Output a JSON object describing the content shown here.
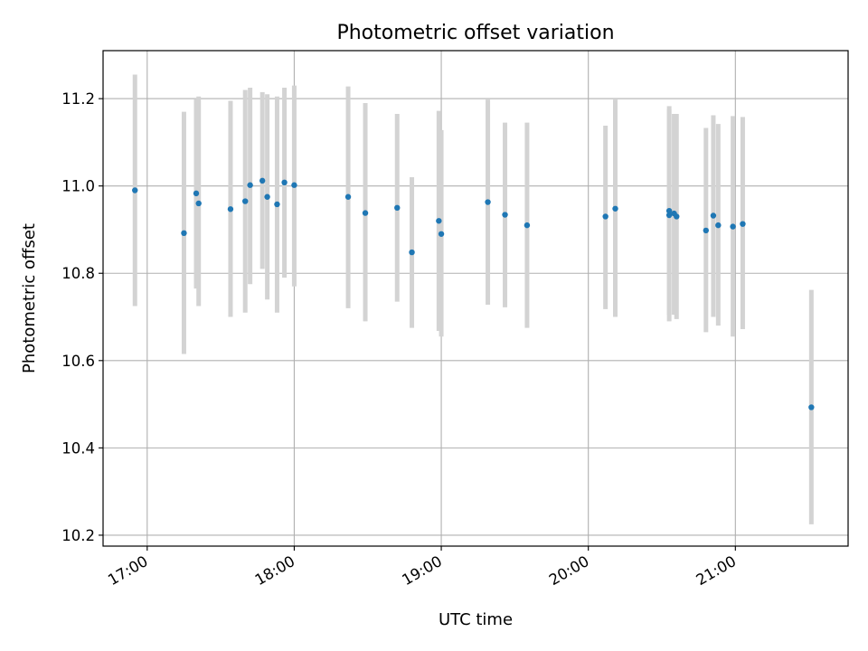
{
  "chart_data": {
    "type": "scatter",
    "title": "Photometric offset variation",
    "xlabel": "UTC time",
    "ylabel": "Photometric offset",
    "x_ticks": [
      "17:00",
      "18:00",
      "19:00",
      "20:00",
      "21:00"
    ],
    "y_ticks": [
      "10.2",
      "10.4",
      "10.6",
      "10.8",
      "11.0",
      "11.2"
    ],
    "x_tick_values": [
      "17:00",
      "18:00",
      "19:00",
      "20:00",
      "21:00"
    ],
    "y_tick_values": [
      10.2,
      10.4,
      10.6,
      10.8,
      11.0,
      11.2
    ],
    "xlim": [
      "16:42",
      "21:46"
    ],
    "ylim": [
      10.175,
      11.31
    ],
    "grid": true,
    "colors": {
      "point": "#1f77b4",
      "errorbar": "#d3d3d3",
      "grid": "#b0b0b0"
    },
    "points": [
      {
        "x": "16:55",
        "y": 10.99,
        "ylo": 10.725,
        "yhi": 11.255
      },
      {
        "x": "17:15",
        "y": 10.892,
        "ylo": 10.615,
        "yhi": 11.17
      },
      {
        "x": "17:20",
        "y": 10.983,
        "ylo": 10.765,
        "yhi": 11.2
      },
      {
        "x": "17:21",
        "y": 10.96,
        "ylo": 10.725,
        "yhi": 11.205
      },
      {
        "x": "17:34",
        "y": 10.947,
        "ylo": 10.7,
        "yhi": 11.195
      },
      {
        "x": "17:40",
        "y": 10.965,
        "ylo": 10.71,
        "yhi": 11.22
      },
      {
        "x": "17:42",
        "y": 11.002,
        "ylo": 10.775,
        "yhi": 11.225
      },
      {
        "x": "17:47",
        "y": 11.012,
        "ylo": 10.81,
        "yhi": 11.215
      },
      {
        "x": "17:49",
        "y": 10.975,
        "ylo": 10.74,
        "yhi": 11.21
      },
      {
        "x": "17:53",
        "y": 10.958,
        "ylo": 10.71,
        "yhi": 11.205
      },
      {
        "x": "17:56",
        "y": 11.008,
        "ylo": 10.79,
        "yhi": 11.225
      },
      {
        "x": "18:00",
        "y": 11.002,
        "ylo": 10.77,
        "yhi": 11.23
      },
      {
        "x": "18:22",
        "y": 10.975,
        "ylo": 10.72,
        "yhi": 11.228
      },
      {
        "x": "18:29",
        "y": 10.938,
        "ylo": 10.69,
        "yhi": 11.19
      },
      {
        "x": "18:42",
        "y": 10.95,
        "ylo": 10.735,
        "yhi": 11.165
      },
      {
        "x": "18:48",
        "y": 10.848,
        "ylo": 10.675,
        "yhi": 11.02
      },
      {
        "x": "18:59",
        "y": 10.92,
        "ylo": 10.668,
        "yhi": 11.172
      },
      {
        "x": "19:00",
        "y": 10.89,
        "ylo": 10.655,
        "yhi": 11.128
      },
      {
        "x": "19:19",
        "y": 10.963,
        "ylo": 10.728,
        "yhi": 11.198
      },
      {
        "x": "19:26",
        "y": 10.934,
        "ylo": 10.722,
        "yhi": 11.145
      },
      {
        "x": "19:35",
        "y": 10.91,
        "ylo": 10.675,
        "yhi": 11.145
      },
      {
        "x": "20:07",
        "y": 10.93,
        "ylo": 10.718,
        "yhi": 11.138
      },
      {
        "x": "20:11",
        "y": 10.948,
        "ylo": 10.7,
        "yhi": 11.198
      },
      {
        "x": "20:33",
        "y": 10.943,
        "ylo": 10.705,
        "yhi": 11.183
      },
      {
        "x": "20:33",
        "y": 10.933,
        "ylo": 10.69,
        "yhi": 11.175
      },
      {
        "x": "20:35",
        "y": 10.937,
        "ylo": 10.705,
        "yhi": 11.165
      },
      {
        "x": "20:36",
        "y": 10.93,
        "ylo": 10.695,
        "yhi": 11.165
      },
      {
        "x": "20:48",
        "y": 10.898,
        "ylo": 10.665,
        "yhi": 11.133
      },
      {
        "x": "20:51",
        "y": 10.932,
        "ylo": 10.7,
        "yhi": 11.162
      },
      {
        "x": "20:53",
        "y": 10.91,
        "ylo": 10.68,
        "yhi": 11.142
      },
      {
        "x": "20:59",
        "y": 10.907,
        "ylo": 10.655,
        "yhi": 11.16
      },
      {
        "x": "21:03",
        "y": 10.913,
        "ylo": 10.672,
        "yhi": 11.158
      },
      {
        "x": "21:31",
        "y": 10.493,
        "ylo": 10.225,
        "yhi": 10.762
      }
    ]
  }
}
